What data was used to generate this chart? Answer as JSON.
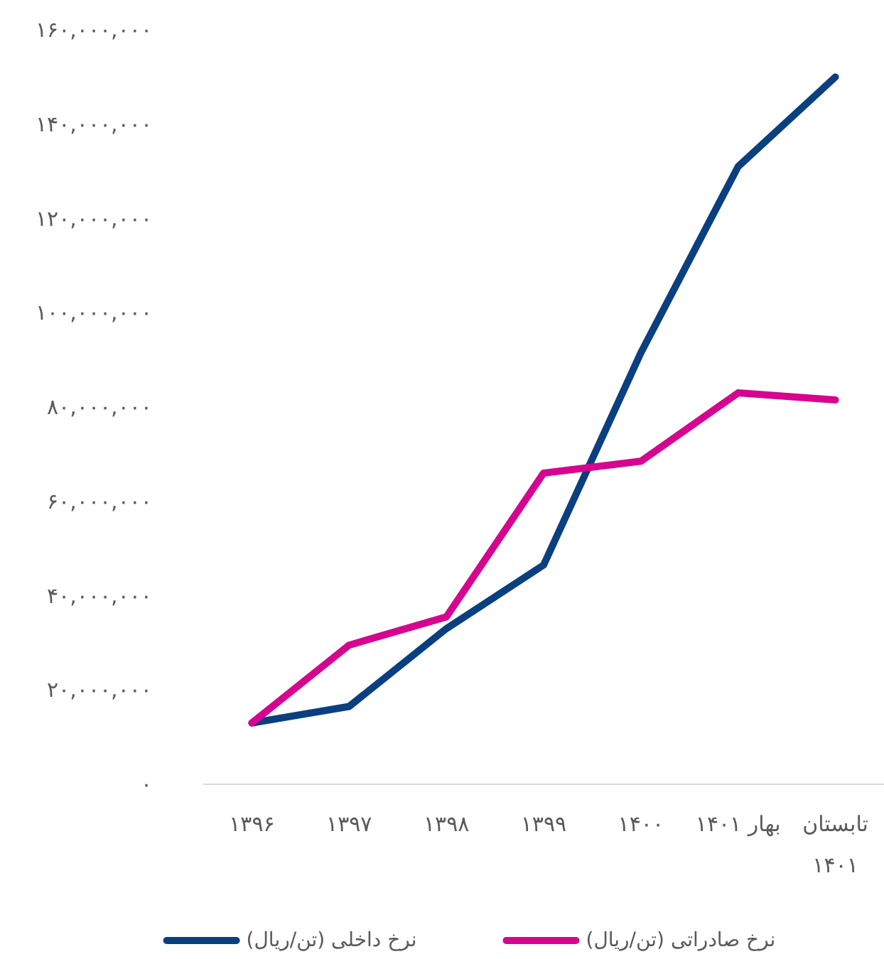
{
  "chart_data": {
    "type": "line",
    "categories": [
      "۱۳۹۶",
      "۱۳۹۷",
      "۱۳۹۸",
      "۱۳۹۹",
      "۱۴۰۰",
      "بهار ۱۴۰۱",
      "تابستان ۱۴۰۱"
    ],
    "series": [
      {
        "name": "نرخ داخلی (تن/ریال)",
        "color": "#0a3f80",
        "values": [
          13000000,
          16500000,
          33000000,
          46500000,
          91500000,
          131000000,
          150000000
        ]
      },
      {
        "name": "نرخ صادراتی (تن/ریال)",
        "color": "#d6048f",
        "values": [
          13000000,
          29500000,
          35500000,
          66000000,
          68500000,
          83000000,
          81500000
        ]
      }
    ],
    "ylim": [
      0,
      160000000
    ],
    "yticks": [
      {
        "value": 0,
        "label": "۰"
      },
      {
        "value": 20000000,
        "label": "۲۰,۰۰۰,۰۰۰"
      },
      {
        "value": 40000000,
        "label": "۴۰,۰۰۰,۰۰۰"
      },
      {
        "value": 60000000,
        "label": "۶۰,۰۰۰,۰۰۰"
      },
      {
        "value": 80000000,
        "label": "۸۰,۰۰۰,۰۰۰"
      },
      {
        "value": 100000000,
        "label": "۱۰۰,۰۰۰,۰۰۰"
      },
      {
        "value": 120000000,
        "label": "۱۲۰,۰۰۰,۰۰۰"
      },
      {
        "value": 140000000,
        "label": "۱۴۰,۰۰۰,۰۰۰"
      },
      {
        "value": 160000000,
        "label": "۱۶۰,۰۰۰,۰۰۰"
      }
    ],
    "legend": "bottom",
    "grid": false,
    "marker": "none",
    "line_style": "solid"
  }
}
